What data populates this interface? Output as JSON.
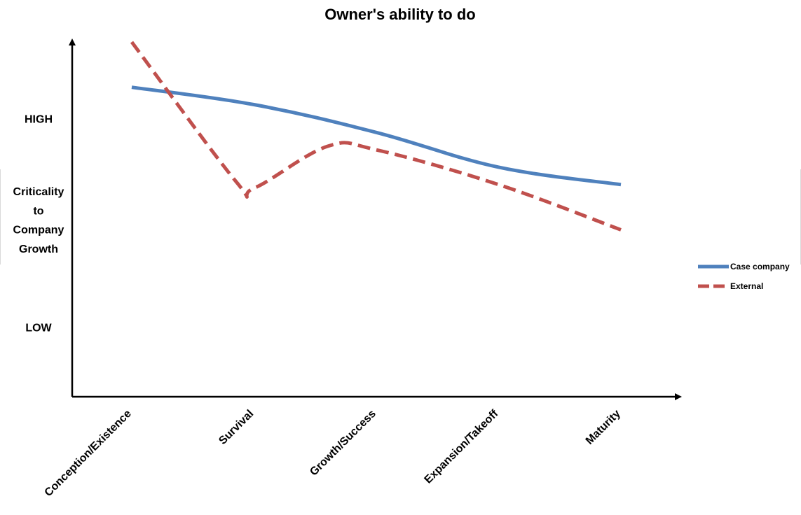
{
  "chart_data": {
    "type": "line",
    "title": "Owner's ability to do",
    "ylabel": [
      "Criticality",
      "to",
      "Company",
      "Growth"
    ],
    "y_levels": [
      {
        "label": "HIGH",
        "value": 0.8
      },
      {
        "label": "LOW",
        "value": 0.2
      }
    ],
    "ylim": [
      0,
      1.0
    ],
    "categories": [
      "Conception/Existence",
      "Survival",
      "Growth/Success",
      "Expansion/Takeoff",
      "Maturity"
    ],
    "series": [
      {
        "name": "Case company",
        "color": "#4f81bd",
        "dash": "solid",
        "points": [
          [
            0,
            0.89
          ],
          [
            1,
            0.84
          ],
          [
            2,
            0.76
          ],
          [
            3,
            0.66
          ],
          [
            4,
            0.61
          ]
        ]
      },
      {
        "name": "External",
        "color": "#c0504d",
        "dash": "dashed",
        "points": [
          [
            0,
            1.02
          ],
          [
            0.85,
            0.62
          ],
          [
            1,
            0.6
          ],
          [
            1.6,
            0.72
          ],
          [
            2,
            0.71
          ],
          [
            3,
            0.61
          ],
          [
            4,
            0.48
          ]
        ]
      }
    ],
    "legend_position": "right",
    "grid": false
  }
}
